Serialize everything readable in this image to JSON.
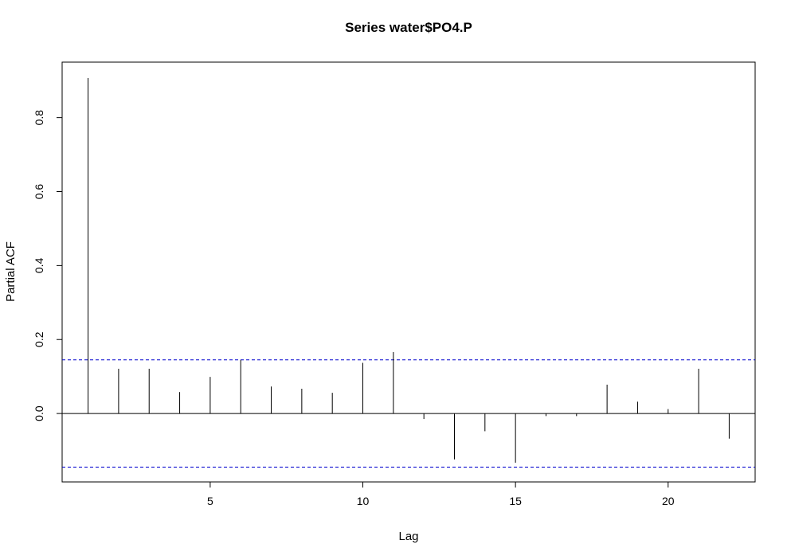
{
  "chart_data": {
    "type": "bar",
    "title": "Series  water$PO4.P",
    "xlabel": "Lag",
    "ylabel": "Partial ACF",
    "xlim": [
      0.15,
      22.85
    ],
    "ylim": [
      -0.185,
      0.95
    ],
    "x_ticks": [
      5,
      10,
      15,
      20
    ],
    "y_ticks": [
      0.0,
      0.2,
      0.4,
      0.6,
      0.8
    ],
    "x_tick_labels": [
      "5",
      "10",
      "15",
      "20"
    ],
    "y_tick_labels": [
      "0.0",
      "0.2",
      "0.4",
      "0.6",
      "0.8"
    ],
    "x": [
      1,
      2,
      3,
      4,
      5,
      6,
      7,
      8,
      9,
      10,
      11,
      12,
      13,
      14,
      15,
      16,
      17,
      18,
      19,
      20,
      21,
      22
    ],
    "values": [
      0.907,
      0.121,
      0.121,
      0.058,
      0.099,
      0.145,
      0.073,
      0.067,
      0.056,
      0.137,
      0.166,
      -0.015,
      -0.124,
      -0.048,
      -0.133,
      -0.007,
      -0.007,
      0.078,
      0.032,
      0.012,
      0.121,
      -0.068
    ],
    "confidence_bounds": [
      0.145,
      -0.145
    ],
    "colors": {
      "bars": "#000000",
      "bounds": "#0000CD",
      "zero_line": "#000000"
    }
  }
}
